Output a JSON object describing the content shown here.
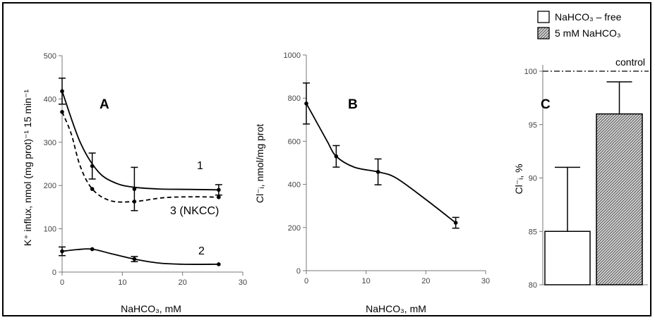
{
  "chart_data": [
    {
      "panel": "A",
      "type": "line",
      "xlabel": "NaHCO₃, mM",
      "ylabel": "K⁺ influx, nmol (mg prot)⁻¹ 15 min⁻¹",
      "xlim": [
        0,
        30
      ],
      "ylim": [
        0,
        500
      ],
      "xticks": [
        0,
        10,
        20,
        30
      ],
      "yticks": [
        0,
        100,
        200,
        300,
        400,
        500
      ],
      "series": [
        {
          "name": "1",
          "style": "solid",
          "x": [
            0,
            5,
            12,
            26
          ],
          "y": [
            418,
            245,
            192,
            190
          ],
          "err": [
            30,
            30,
            50,
            12
          ],
          "curve": [
            [
              0,
              418
            ],
            [
              3,
              300
            ],
            [
              6,
              232
            ],
            [
              9,
              205
            ],
            [
              12,
              196
            ],
            [
              16,
              192
            ],
            [
              21,
              191
            ],
            [
              26,
              190
            ]
          ]
        },
        {
          "name": "3 (NKCC)",
          "style": "dashed",
          "x": [
            0,
            5,
            12,
            26
          ],
          "y": [
            370,
            192,
            163,
            173
          ],
          "err": [
            0,
            0,
            0,
            0
          ],
          "curve": [
            [
              0,
              370
            ],
            [
              1.5,
              320
            ],
            [
              3,
              245
            ],
            [
              5,
              192
            ],
            [
              8,
              165
            ],
            [
              12,
              163
            ],
            [
              17,
              172
            ],
            [
              22,
              174
            ],
            [
              26,
              173
            ]
          ]
        },
        {
          "name": "2",
          "style": "solid",
          "x": [
            0,
            5,
            12,
            26
          ],
          "y": [
            48,
            53,
            30,
            18
          ],
          "err": [
            10,
            0,
            6,
            0
          ],
          "curve": [
            [
              0,
              48
            ],
            [
              2.5,
              52
            ],
            [
              5,
              53
            ],
            [
              8,
              43
            ],
            [
              12,
              30
            ],
            [
              16,
              21
            ],
            [
              20,
              18
            ],
            [
              26,
              18
            ]
          ]
        }
      ]
    },
    {
      "panel": "B",
      "type": "line",
      "xlabel": "NaHCO₃, mM",
      "ylabel": "Cl⁻ᵢ, nmol/mg prot",
      "xlim": [
        0,
        30
      ],
      "ylim": [
        0,
        1000
      ],
      "xticks": [
        0,
        10,
        20,
        30
      ],
      "yticks": [
        0,
        200,
        400,
        600,
        800,
        1000
      ],
      "series": [
        {
          "x": [
            0,
            5,
            12,
            25
          ],
          "y": [
            775,
            530,
            458,
            222
          ],
          "err": [
            95,
            50,
            60,
            25
          ],
          "curve": [
            [
              0,
              775
            ],
            [
              1.5,
              700
            ],
            [
              3.5,
              600
            ],
            [
              5,
              530
            ],
            [
              8,
              480
            ],
            [
              12,
              458
            ],
            [
              15,
              430
            ],
            [
              20,
              330
            ],
            [
              25,
              222
            ]
          ]
        }
      ]
    },
    {
      "panel": "C",
      "type": "bar",
      "ylabel": "Cl⁻ᵢ, %",
      "ylim": [
        80,
        100
      ],
      "yticks": [
        80,
        85,
        90,
        95,
        100
      ],
      "reference_line": {
        "y": 100,
        "label": "control"
      },
      "categories": [
        "NaHCO₃ – free",
        "5 mM NaHCO₃"
      ],
      "values": [
        85,
        96
      ],
      "err": [
        6,
        3
      ],
      "legend": [
        "NaHCO₃ – free",
        "5 mM NaHCO₃"
      ]
    }
  ],
  "text": {
    "panel_a": "A",
    "panel_b": "B",
    "panel_c": "C",
    "label_1": "1",
    "label_2": "2",
    "label_3": "3 (NKCC)",
    "control": "control",
    "legend_1": "NaHCO₃ – free",
    "legend_2": "5 mM NaHCO₃",
    "xlabel_a": "NaHCO₃, mM",
    "xlabel_b": "NaHCO₃, mM",
    "ylabel_a": "K⁺ influx, nmol (mg prot)⁻¹ 15 min⁻¹",
    "ylabel_b": "Cl⁻ᵢ, nmol/mg prot",
    "ylabel_c": "Cl⁻ᵢ, %"
  }
}
